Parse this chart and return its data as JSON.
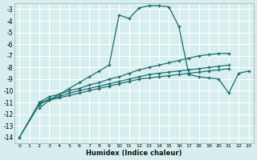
{
  "xlabel": "Humidex (Indice chaleur)",
  "bg_color": "#d6eeee",
  "grid_color": "#ffffff",
  "line_color": "#1a6b6b",
  "xlim": [
    -0.5,
    23.5
  ],
  "ylim": [
    -14.5,
    -2.5
  ],
  "xticks": [
    0,
    1,
    2,
    3,
    4,
    5,
    6,
    7,
    8,
    9,
    10,
    11,
    12,
    13,
    14,
    15,
    16,
    17,
    18,
    19,
    20,
    21,
    22,
    23
  ],
  "yticks": [
    -3,
    -4,
    -5,
    -6,
    -7,
    -8,
    -9,
    -10,
    -11,
    -12,
    -13,
    -14
  ],
  "series": [
    [
      null,
      null,
      -11.5,
      -10.8,
      -10.3,
      -9.8,
      -9.3,
      -8.8,
      -8.3,
      -7.8,
      -3.5,
      -3.8,
      -2.9,
      -2.7,
      -2.7,
      -2.8,
      -4.5,
      -8.6,
      -8.8,
      -8.9,
      -9.0,
      -10.2,
      -8.5,
      -8.3
    ],
    [
      null,
      null,
      -11.0,
      -10.5,
      -10.3,
      -10.0,
      -9.8,
      -9.5,
      -9.3,
      -9.0,
      -8.8,
      -8.5,
      -8.2,
      -8.0,
      -7.8,
      -7.6,
      -7.4,
      -7.2,
      -7.0,
      -6.9,
      -6.8,
      -6.8,
      null,
      null
    ],
    [
      -14.0,
      null,
      -11.2,
      -10.7,
      -10.5,
      -10.2,
      -10.0,
      -9.8,
      -9.6,
      -9.4,
      -9.2,
      -9.0,
      -8.8,
      -8.6,
      -8.5,
      -8.4,
      -8.3,
      -8.2,
      -8.1,
      -8.0,
      -7.9,
      -7.8,
      null,
      null
    ],
    [
      -14.0,
      null,
      -11.0,
      -10.8,
      -10.6,
      -10.4,
      -10.2,
      -10.0,
      -9.8,
      -9.6,
      -9.4,
      -9.2,
      -9.0,
      -8.9,
      -8.8,
      -8.7,
      -8.6,
      -8.5,
      -8.4,
      -8.3,
      -8.2,
      -8.1,
      null,
      null
    ]
  ]
}
